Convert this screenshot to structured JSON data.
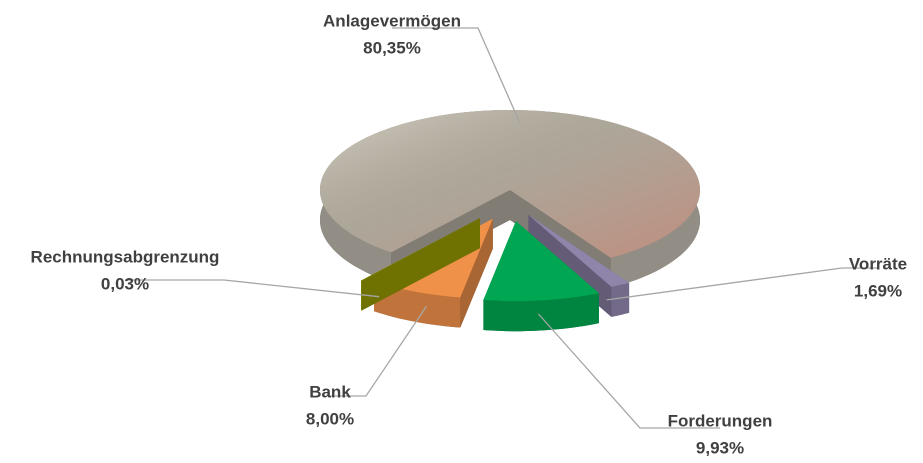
{
  "chart_data": {
    "type": "pie",
    "categories": [
      "Anlagevermögen",
      "Vorräte",
      "Forderungen",
      "Bank",
      "Rechnungsabgrenzung"
    ],
    "values": [
      80.35,
      1.69,
      9.93,
      8.0,
      0.03
    ],
    "value_labels": [
      "80,35%",
      "1,69%",
      "9,93%",
      "8,00%",
      "0,03%"
    ],
    "colors": [
      "#b8b2a6",
      "#8f84aa",
      "#00a651",
      "#f0914a",
      "#9ea300"
    ]
  }
}
